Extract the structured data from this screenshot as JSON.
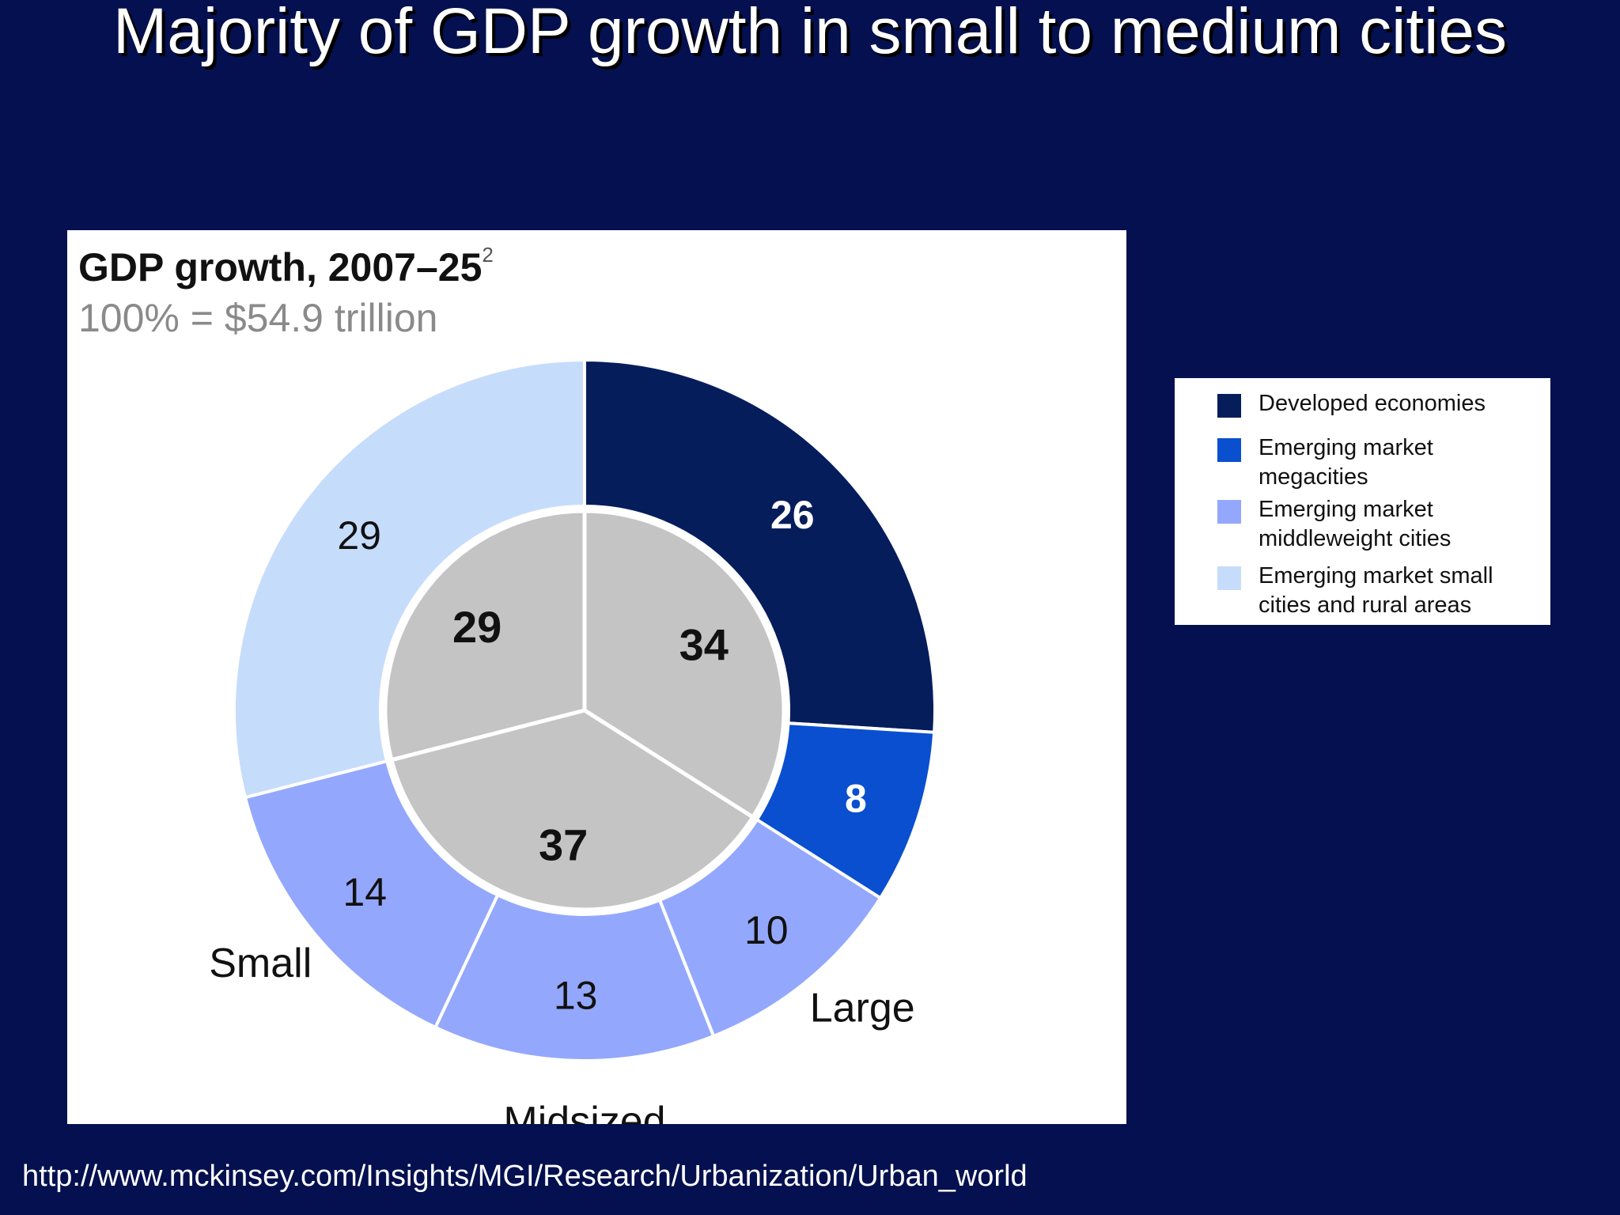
{
  "slide": {
    "title": "Majority of GDP growth in small to medium cities",
    "source": "http://www.mckinsey.com/Insights/MGI/Research/Urbanization/Urban_world"
  },
  "chart_data": {
    "type": "pie",
    "title": "GDP growth, 2007–25",
    "title_footnote": "2",
    "subtitle": "100% = $54.9 trillion",
    "inner_ring": {
      "categories": [
        "Large",
        "Midsized",
        "Small"
      ],
      "values": [
        34,
        37,
        29
      ],
      "color": "#c4c4c4"
    },
    "outer_ring": [
      {
        "series": "Developed economies",
        "value": 26
      },
      {
        "series": "Emerging market megacities",
        "value": 8
      },
      {
        "series": "Emerging market middleweight cities",
        "value": 10
      },
      {
        "series": "Emerging market middleweight cities",
        "value": 13
      },
      {
        "series": "Emerging market middleweight cities",
        "value": 14
      },
      {
        "series": "Emerging market small cities and rural areas",
        "value": 29
      }
    ],
    "legend": [
      {
        "name": "Developed economies",
        "color": "#061d5c"
      },
      {
        "name": "Emerging market megacities",
        "color": "#0a4fcf"
      },
      {
        "name": "Emerging market middleweight cities",
        "color": "#93a8fc"
      },
      {
        "name": "Emerging market small cities and rural areas",
        "color": "#c6dcfb"
      }
    ],
    "legend_placement": "right"
  }
}
